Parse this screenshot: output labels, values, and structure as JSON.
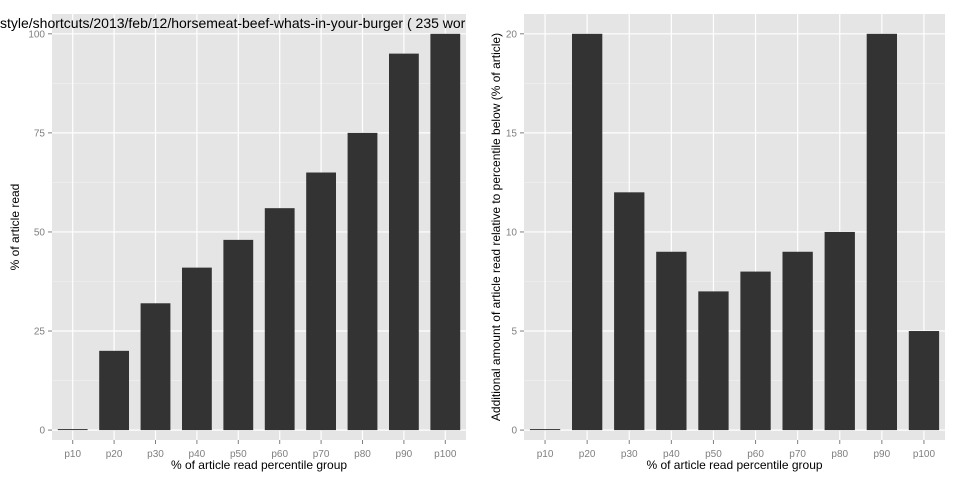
{
  "chart_data": [
    {
      "type": "bar",
      "title": "style/shortcuts/2013/feb/12/horsemeat-beef-whats-in-your-burger ( 235 wor",
      "xlabel": "% of article read percentile group",
      "ylabel": "% of article read",
      "categories": [
        "p10",
        "p20",
        "p30",
        "p40",
        "p50",
        "p60",
        "p70",
        "p80",
        "p90",
        "p100"
      ],
      "values": [
        0,
        20,
        32,
        41,
        48,
        56,
        65,
        75,
        95,
        100
      ],
      "yticks": [
        0,
        25,
        50,
        75,
        100
      ],
      "ytick_labels": [
        "0",
        "25",
        "50",
        "75",
        "100"
      ],
      "ylim": [
        -2.5,
        105
      ],
      "grid": true,
      "bar_color": "#333333",
      "panel_background": "#e5e5e5",
      "grid_color": "#ffffff"
    },
    {
      "type": "bar",
      "title": "",
      "xlabel": "% of article read percentile group",
      "ylabel": "Additional amount of article read relative to percentile below (% of article)",
      "categories": [
        "p10",
        "p20",
        "p30",
        "p40",
        "p50",
        "p60",
        "p70",
        "p80",
        "p90",
        "p100"
      ],
      "values": [
        0,
        20,
        12,
        9,
        7,
        8,
        9,
        10,
        20,
        5
      ],
      "yticks": [
        0,
        5,
        10,
        15,
        20
      ],
      "ytick_labels": [
        "0",
        "5",
        "10",
        "15",
        "20"
      ],
      "ylim": [
        -0.5,
        21
      ],
      "grid": true,
      "bar_color": "#333333",
      "panel_background": "#e5e5e5",
      "grid_color": "#ffffff"
    }
  ]
}
